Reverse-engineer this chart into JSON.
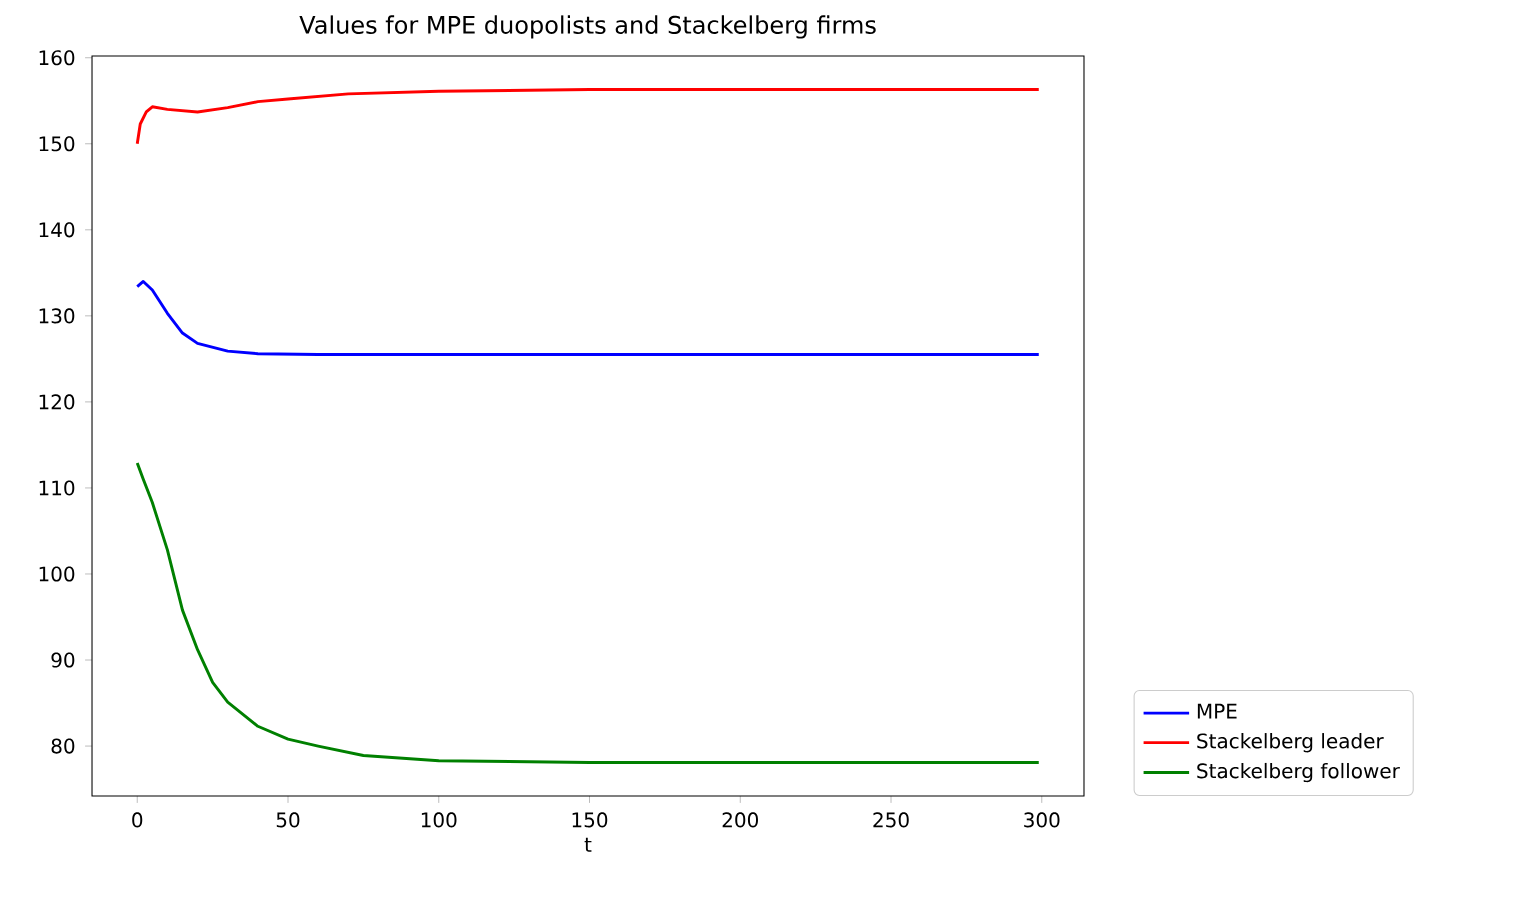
{
  "chart_data": {
    "type": "line",
    "title": "Values for MPE duopolists and  Stackelberg firms",
    "xlabel": "t",
    "xlim": [
      -15,
      314
    ],
    "ylim": [
      74.2,
      160.2
    ],
    "xticks": [
      0,
      50,
      100,
      150,
      200,
      250,
      300
    ],
    "yticks": [
      80,
      90,
      100,
      110,
      120,
      130,
      140,
      150,
      160
    ],
    "legend": "bottom right",
    "grid": false,
    "marker": "none",
    "line_style": "solid",
    "series": [
      {
        "name": "MPE",
        "color": "#0000ff",
        "x": [
          0,
          2,
          5,
          10,
          15,
          20,
          30,
          40,
          60,
          100,
          150,
          200,
          250,
          299
        ],
        "values": [
          133.4,
          134.0,
          133.0,
          130.3,
          128.0,
          126.8,
          125.9,
          125.6,
          125.5,
          125.5,
          125.5,
          125.5,
          125.5,
          125.5
        ]
      },
      {
        "name": "Stackelberg leader",
        "color": "#ff0000",
        "x": [
          0,
          1,
          3,
          5,
          10,
          20,
          30,
          40,
          50,
          70,
          100,
          150,
          200,
          250,
          299
        ],
        "values": [
          150.0,
          152.3,
          153.7,
          154.3,
          154.0,
          153.7,
          154.2,
          154.9,
          155.2,
          155.8,
          156.1,
          156.3,
          156.3,
          156.3,
          156.3
        ]
      },
      {
        "name": "Stackelberg follower",
        "color": "#008000",
        "x": [
          0,
          2,
          5,
          10,
          15,
          20,
          25,
          30,
          40,
          50,
          60,
          75,
          100,
          150,
          200,
          250,
          299
        ],
        "values": [
          112.9,
          111.0,
          108.3,
          102.8,
          95.8,
          91.2,
          87.4,
          85.1,
          82.3,
          80.8,
          80.0,
          78.9,
          78.3,
          78.1,
          78.1,
          78.1,
          78.1
        ]
      }
    ]
  }
}
